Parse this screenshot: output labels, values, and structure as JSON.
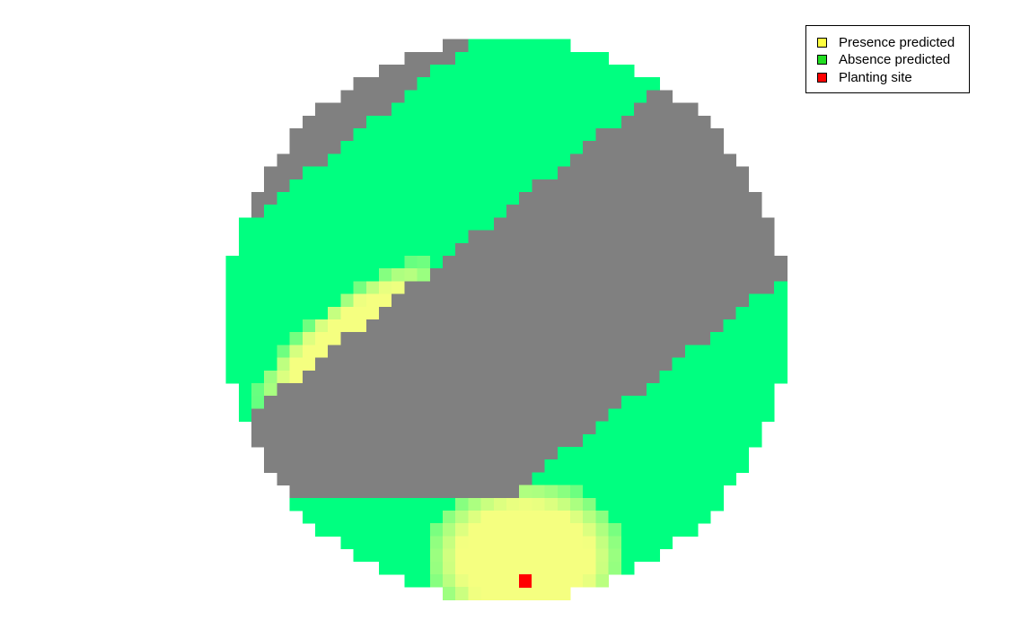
{
  "map": {
    "colors": {
      "presence": "#f5ff80",
      "absence": "#00ff80",
      "masked": "#808080",
      "planting": "#ff0000"
    },
    "planting_site": "bottom-center",
    "presence_zones": [
      "north-west diagonal band",
      "south around planting site"
    ],
    "absence_bands": [
      "north-west diagonal band",
      "south-east diagonal band"
    ]
  },
  "legend": {
    "items": [
      {
        "label": "Presence predicted",
        "color": "#ffff40"
      },
      {
        "label": "Absence predicted",
        "color": "#22dd22"
      },
      {
        "label": "Planting site",
        "color": "#ff0000"
      }
    ]
  }
}
